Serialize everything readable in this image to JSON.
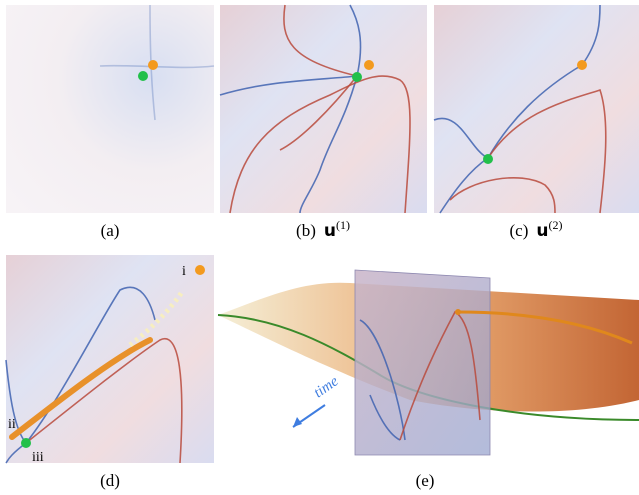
{
  "panels": [
    {
      "label": "(a)"
    },
    {
      "label": "(b)",
      "symbol": "u",
      "superscript": "(1)"
    },
    {
      "label": "(c)",
      "symbol": "u",
      "superscript": "(2)"
    },
    {
      "label": "(d)",
      "points": [
        "i",
        "ii",
        "iii"
      ]
    },
    {
      "label": "(e)",
      "arrow_label": "time"
    }
  ]
}
